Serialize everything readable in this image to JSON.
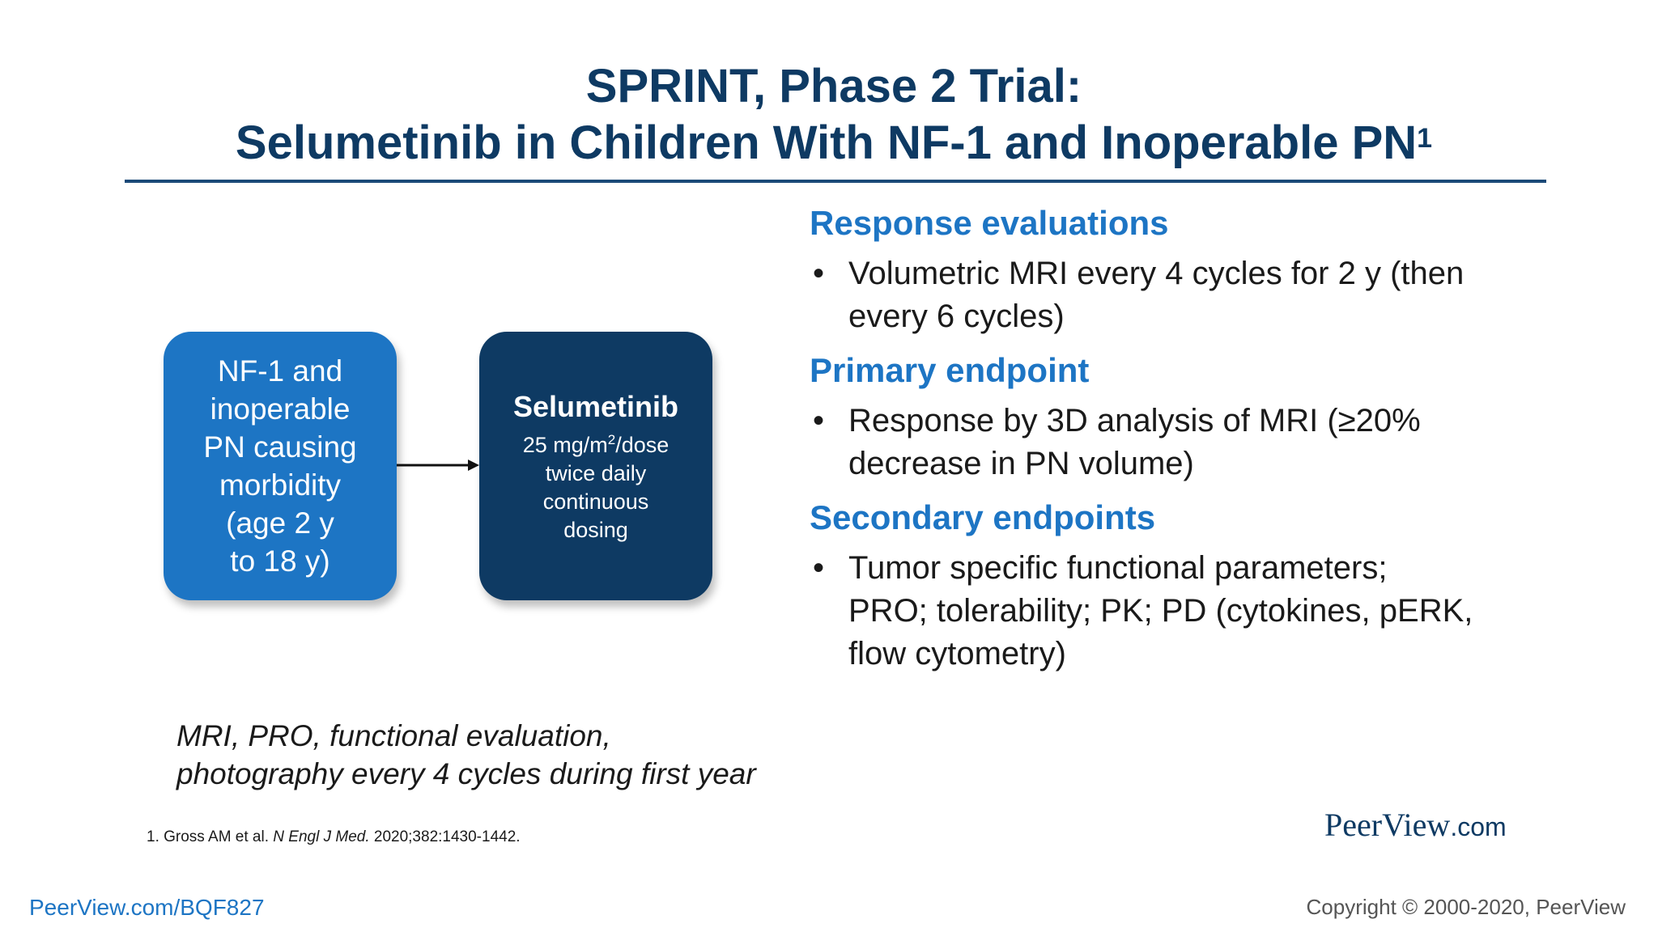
{
  "slide": {
    "title_line1": "SPRINT, Phase 2 Trial:",
    "title_line2": "Selumetinib in Children With NF-1 and Inoperable PN",
    "title_ref": "1"
  },
  "flow": {
    "population_box": {
      "lines": [
        "NF-1 and",
        "inoperable",
        "PN causing",
        "morbidity",
        "(age 2 y",
        "to 18 y)"
      ]
    },
    "treatment_box": {
      "drug": "Selumetinib",
      "dose_prefix": "25 mg/m",
      "dose_sup": "2",
      "dose_suffix": "/dose",
      "lines": [
        "twice daily",
        "continuous",
        "dosing"
      ]
    },
    "assessment_note": {
      "line1": "MRI, PRO, functional evaluation,",
      "line2": "photography every 4 cycles during first year"
    }
  },
  "sections": [
    {
      "heading": "Response evaluations",
      "bullets": [
        "Volumetric MRI every 4 cycles for 2 y (then every 6 cycles)"
      ]
    },
    {
      "heading": "Primary endpoint",
      "bullets": [
        "Response by 3D analysis of MRI (≥20% decrease in PN volume)"
      ]
    },
    {
      "heading": "Secondary endpoints",
      "bullets": [
        "Tumor specific functional parameters; PRO; tolerability; PK; PD (cytokines, pERK, flow cytometry)"
      ]
    }
  ],
  "reference": {
    "prefix": "1. Gross AM et al. ",
    "journal": "N Engl J Med.",
    "suffix": " 2020;382:1430-1442."
  },
  "logo": {
    "name": "PeerView",
    "suffix": ".com"
  },
  "footer": {
    "link": "PeerView.com/BQF827",
    "copyright": "Copyright © 2000-2020, PeerView"
  },
  "colors": {
    "title": "#0e3a63",
    "accent_blue": "#1d75c4",
    "dark_navy": "#0e3a63"
  }
}
